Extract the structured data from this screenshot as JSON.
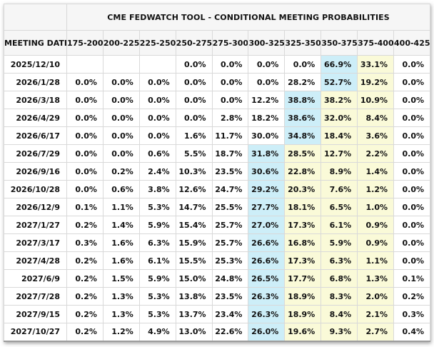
{
  "chart_data": {
    "type": "table",
    "title": "CME FEDWATCH TOOL - CONDITIONAL MEETING PROBABILITIES",
    "date_column_header": "MEETING DATE",
    "rate_bin_headers": [
      "175-200",
      "200-225",
      "225-250",
      "250-275",
      "275-300",
      "300-325",
      "325-350",
      "350-375",
      "375-400",
      "400-425"
    ],
    "rows": [
      {
        "date": "2025/12/10",
        "values": [
          "",
          "",
          "",
          "0.0%",
          "0.0%",
          "0.0%",
          "0.0%",
          "66.9%",
          "33.1%",
          "0.0%"
        ],
        "blue_col": 7,
        "yellow_cols": [
          8
        ]
      },
      {
        "date": "2026/1/28",
        "values": [
          "0.0%",
          "0.0%",
          "0.0%",
          "0.0%",
          "0.0%",
          "0.0%",
          "28.2%",
          "52.7%",
          "19.2%",
          "0.0%"
        ],
        "blue_col": 7,
        "yellow_cols": [
          8
        ]
      },
      {
        "date": "2026/3/18",
        "values": [
          "0.0%",
          "0.0%",
          "0.0%",
          "0.0%",
          "0.0%",
          "12.2%",
          "38.8%",
          "38.2%",
          "10.9%",
          "0.0%"
        ],
        "blue_col": 6,
        "yellow_cols": [
          7,
          8
        ]
      },
      {
        "date": "2026/4/29",
        "values": [
          "0.0%",
          "0.0%",
          "0.0%",
          "0.0%",
          "2.8%",
          "18.2%",
          "38.6%",
          "32.0%",
          "8.4%",
          "0.0%"
        ],
        "blue_col": 6,
        "yellow_cols": [
          7,
          8
        ]
      },
      {
        "date": "2026/6/17",
        "values": [
          "0.0%",
          "0.0%",
          "0.0%",
          "1.6%",
          "11.7%",
          "30.0%",
          "34.8%",
          "18.4%",
          "3.6%",
          "0.0%"
        ],
        "blue_col": 6,
        "yellow_cols": [
          7,
          8
        ]
      },
      {
        "date": "2026/7/29",
        "values": [
          "0.0%",
          "0.0%",
          "0.6%",
          "5.5%",
          "18.7%",
          "31.8%",
          "28.5%",
          "12.7%",
          "2.2%",
          "0.0%"
        ],
        "blue_col": 5,
        "yellow_cols": [
          6,
          7,
          8
        ]
      },
      {
        "date": "2026/9/16",
        "values": [
          "0.0%",
          "0.2%",
          "2.4%",
          "10.3%",
          "23.5%",
          "30.6%",
          "22.8%",
          "8.9%",
          "1.4%",
          "0.0%"
        ],
        "blue_col": 5,
        "yellow_cols": [
          6,
          7,
          8
        ]
      },
      {
        "date": "2026/10/28",
        "values": [
          "0.0%",
          "0.6%",
          "3.8%",
          "12.6%",
          "24.7%",
          "29.2%",
          "20.3%",
          "7.6%",
          "1.2%",
          "0.0%"
        ],
        "blue_col": 5,
        "yellow_cols": [
          6,
          7,
          8
        ]
      },
      {
        "date": "2026/12/9",
        "values": [
          "0.1%",
          "1.1%",
          "5.3%",
          "14.7%",
          "25.5%",
          "27.7%",
          "18.1%",
          "6.5%",
          "1.0%",
          "0.0%"
        ],
        "blue_col": 5,
        "yellow_cols": [
          6,
          7,
          8
        ]
      },
      {
        "date": "2027/1/27",
        "values": [
          "0.2%",
          "1.4%",
          "5.9%",
          "15.4%",
          "25.7%",
          "27.0%",
          "17.3%",
          "6.1%",
          "0.9%",
          "0.0%"
        ],
        "blue_col": 5,
        "yellow_cols": [
          6,
          7,
          8
        ]
      },
      {
        "date": "2027/3/17",
        "values": [
          "0.3%",
          "1.6%",
          "6.3%",
          "15.9%",
          "25.7%",
          "26.6%",
          "16.8%",
          "5.9%",
          "0.9%",
          "0.0%"
        ],
        "blue_col": 5,
        "yellow_cols": [
          6,
          7,
          8
        ]
      },
      {
        "date": "2027/4/28",
        "values": [
          "0.2%",
          "1.6%",
          "6.1%",
          "15.5%",
          "25.3%",
          "26.6%",
          "17.3%",
          "6.3%",
          "1.1%",
          "0.0%"
        ],
        "blue_col": 5,
        "yellow_cols": [
          6,
          7,
          8
        ]
      },
      {
        "date": "2027/6/9",
        "values": [
          "0.2%",
          "1.5%",
          "5.9%",
          "15.0%",
          "24.8%",
          "26.5%",
          "17.7%",
          "6.8%",
          "1.3%",
          "0.1%"
        ],
        "blue_col": 5,
        "yellow_cols": [
          6,
          7,
          8
        ]
      },
      {
        "date": "2027/7/28",
        "values": [
          "0.2%",
          "1.3%",
          "5.3%",
          "13.8%",
          "23.5%",
          "26.3%",
          "18.9%",
          "8.3%",
          "2.0%",
          "0.2%"
        ],
        "blue_col": 5,
        "yellow_cols": [
          6,
          7,
          8
        ]
      },
      {
        "date": "2027/9/15",
        "values": [
          "0.2%",
          "1.3%",
          "5.3%",
          "13.7%",
          "23.4%",
          "26.3%",
          "18.9%",
          "8.4%",
          "2.1%",
          "0.3%"
        ],
        "blue_col": 5,
        "yellow_cols": [
          6,
          7,
          8
        ]
      },
      {
        "date": "2027/10/27",
        "values": [
          "0.2%",
          "1.2%",
          "4.9%",
          "13.0%",
          "22.6%",
          "26.0%",
          "19.6%",
          "9.3%",
          "2.7%",
          "0.4%"
        ],
        "blue_col": 5,
        "yellow_cols": [
          6,
          7,
          8
        ]
      }
    ],
    "colors": {
      "highlight_blue": "#cdeef8",
      "highlight_yellow": "#fafad8",
      "header_background": "#f6f6f6",
      "row_background": "#ffffff",
      "grid_border": "#d9d9d9",
      "text": "#111111"
    },
    "layout_hints": {
      "grid": true,
      "title_position": "top-center",
      "value_alignment": "right"
    }
  }
}
